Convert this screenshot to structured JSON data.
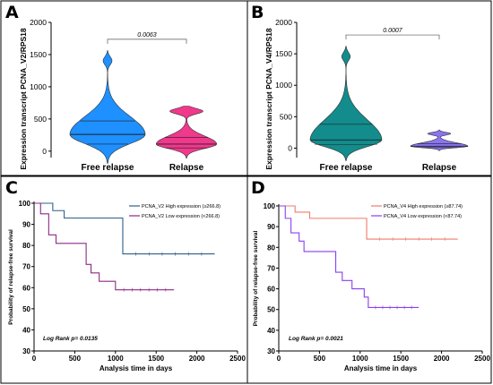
{
  "chart_data": [
    {
      "panel": "A",
      "type": "violin",
      "ylabel": "Expression transcript PCNA_V2/RPS18",
      "ylim": [
        -100,
        2000
      ],
      "yticks": [
        "0",
        "500",
        "1000",
        "1500",
        "2000"
      ],
      "categories": [
        "Free relapse",
        "Relapse"
      ],
      "series": [
        {
          "color": "#1e90ff",
          "median": 260,
          "q1": 110,
          "q3": 470,
          "min": -190,
          "max": 1560
        },
        {
          "color": "#f0388c",
          "median": 110,
          "q1": 50,
          "q3": 210,
          "min": -110,
          "max": 700
        }
      ],
      "pvalue": "0.0063"
    },
    {
      "panel": "B",
      "type": "violin",
      "ylabel": "Expression transcript PCNA_V4/RPS18",
      "ylim": [
        -150,
        2000
      ],
      "yticks": [
        "0",
        "500",
        "1000",
        "1500",
        "2000"
      ],
      "categories": [
        "Free relapse",
        "Relapse"
      ],
      "series": [
        {
          "color": "#128c8c",
          "median": 130,
          "q1": 60,
          "q3": 380,
          "min": -200,
          "max": 1620
        },
        {
          "color": "#8a74f0",
          "median": 30,
          "q1": 10,
          "q3": 70,
          "min": -40,
          "max": 290
        }
      ],
      "pvalue": "0.0007"
    },
    {
      "panel": "C",
      "type": "line",
      "ylabel": "Probability of relapse-free survival",
      "xlabel": "Analysis time in days",
      "xlim": [
        0,
        2500
      ],
      "ylim": [
        30,
        100
      ],
      "xticks": [
        "0",
        "500",
        "1000",
        "1500",
        "2000",
        "2500"
      ],
      "yticks": [
        "30",
        "40",
        "50",
        "60",
        "70",
        "80",
        "90",
        "100"
      ],
      "series": [
        {
          "name": "PCNA_V2 High expression (≥266.8)",
          "color": "#2e5f8a",
          "x": [
            0,
            230,
            370,
            1040,
            1090,
            2220
          ],
          "y": [
            100,
            96.5,
            93,
            93,
            76,
            76
          ]
        },
        {
          "name": "PCNA_V2 Low expression (<266.8)",
          "color": "#8c2a84",
          "x": [
            0,
            80,
            180,
            270,
            640,
            700,
            800,
            1000,
            1720
          ],
          "y": [
            100,
            95,
            85,
            81,
            71,
            67,
            63,
            59,
            59
          ]
        }
      ],
      "annotation": "Log Rank p= 0.0135"
    },
    {
      "panel": "D",
      "type": "line",
      "ylabel": "Probability of relapse-free survival",
      "xlabel": "Analysis time in days",
      "xlim": [
        0,
        2500
      ],
      "ylim": [
        30,
        100
      ],
      "xticks": [
        "0",
        "500",
        "1000",
        "1500",
        "2000",
        "2500"
      ],
      "yticks": [
        "30",
        "40",
        "50",
        "60",
        "70",
        "80",
        "90",
        "100"
      ],
      "series": [
        {
          "name": "PCNA_V4 High expression (≥87.74)",
          "color": "#ef7b6c",
          "x": [
            0,
            200,
            380,
            1080,
            2200
          ],
          "y": [
            100,
            97,
            94,
            84,
            84
          ]
        },
        {
          "name": "PCNA_V4 Low expression (<87.74)",
          "color": "#8a3ff0",
          "x": [
            0,
            80,
            150,
            250,
            310,
            640,
            700,
            780,
            900,
            1050,
            1100,
            1720
          ],
          "y": [
            100,
            94,
            87,
            83,
            78,
            78,
            68,
            64,
            60,
            56,
            51,
            51
          ]
        }
      ],
      "annotation": "Log Rank p= 0.0021"
    }
  ]
}
